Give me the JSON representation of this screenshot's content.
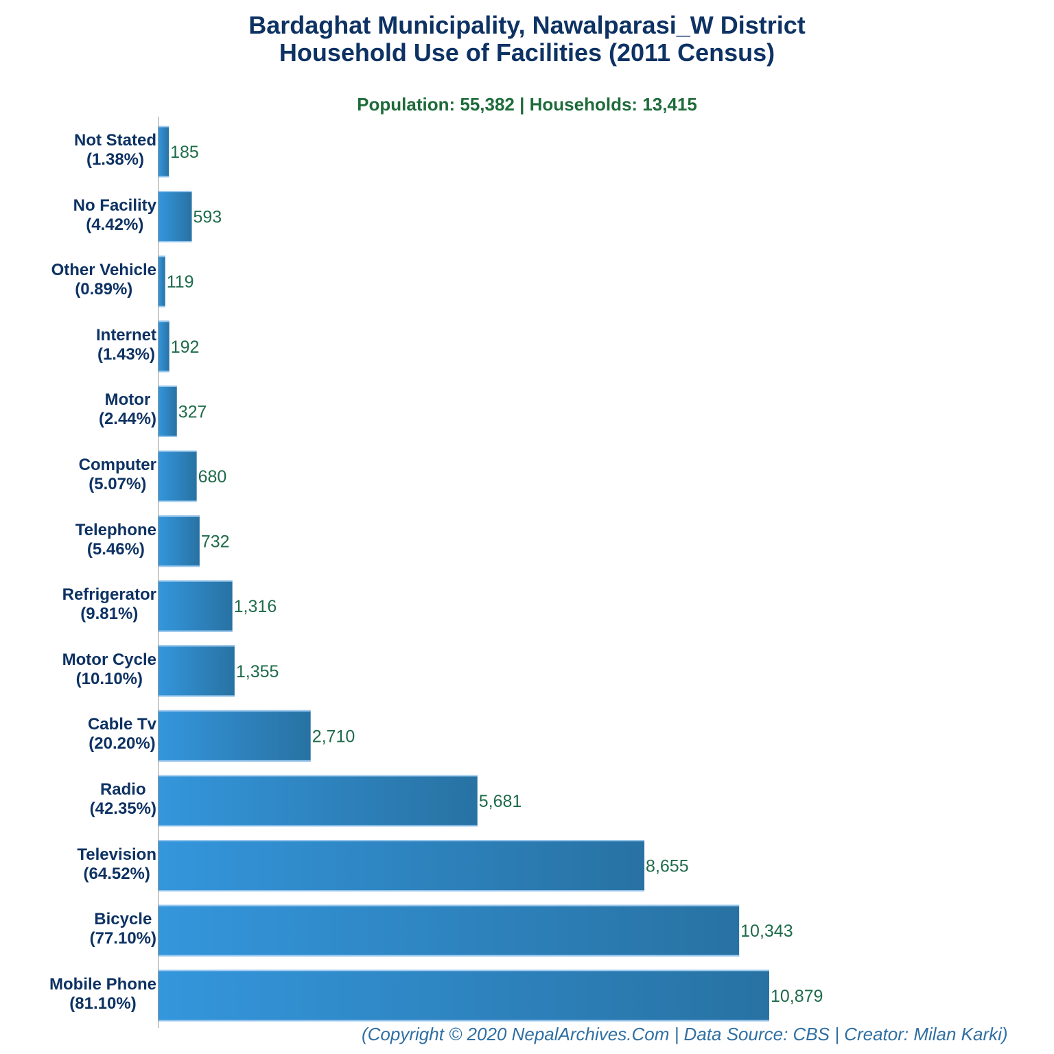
{
  "chart_data": {
    "type": "bar",
    "orientation": "horizontal",
    "title": [
      "Bardaghat Municipality, Nawalparasi_W District",
      "Household Use of Facilities (2011 Census)"
    ],
    "subtitle": "Population: 55,382 | Households: 13,415",
    "footer": "(Copyright © 2020 NepalArchives.Com | Data Source: CBS | Creator: Milan Karki)",
    "categories": [
      "Not Stated",
      "No Facility",
      "Other Vehicle",
      "Internet",
      "Motor",
      "Computer",
      "Telephone",
      "Refrigerator",
      "Motor Cycle",
      "Cable Tv",
      "Radio",
      "Television",
      "Bicycle",
      "Mobile Phone"
    ],
    "percent_labels": [
      "(1.38%)",
      "(4.42%)",
      "(0.89%)",
      "(1.43%)",
      "(2.44%)",
      "(5.07%)",
      "(5.46%)",
      "(9.81%)",
      "(10.10%)",
      "(20.20%)",
      "(42.35%)",
      "(64.52%)",
      "(77.10%)",
      "(81.10%)"
    ],
    "values": [
      185,
      593,
      119,
      192,
      327,
      680,
      732,
      1316,
      1355,
      2710,
      5681,
      8655,
      10343,
      10879
    ],
    "value_labels": [
      "185",
      "593",
      "119",
      "192",
      "327",
      "680",
      "732",
      "1,316",
      "1,355",
      "2,710",
      "5,681",
      "8,655",
      "10,343",
      "10,879"
    ],
    "xlim": [
      0,
      10879
    ],
    "grid": false,
    "colors": {
      "bar_start": "#3496dc",
      "bar_end": "#2872a3",
      "bar_edge": "#9cc8ee",
      "title": "#0d3263",
      "subtitle": "#1e6b3a",
      "value_label": "#1e6b4a",
      "footer": "#2f6fa3"
    }
  }
}
